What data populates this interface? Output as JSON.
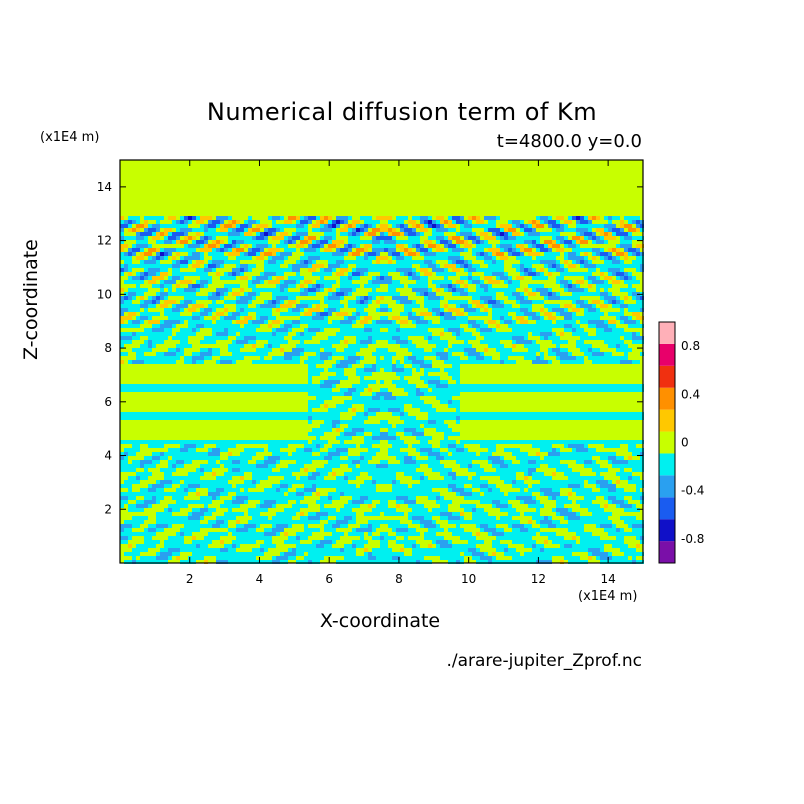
{
  "chart_data": {
    "type": "heatmap",
    "title": "Numerical diffusion term of Km",
    "subtitle": "t=4800.0 y=0.0",
    "xlabel": "X-coordinate",
    "ylabel": "Z-coordinate",
    "x_scale_note": "(x1E4 m)",
    "y_scale_note": "(x1E4 m)",
    "footnote": "./arare-jupiter_Zprof.nc",
    "xlim": [
      0,
      15
    ],
    "ylim": [
      0,
      15
    ],
    "xticks": [
      "2",
      "4",
      "6",
      "8",
      "10",
      "12",
      "14"
    ],
    "yticks": [
      "2",
      "4",
      "6",
      "8",
      "10",
      "12",
      "14"
    ],
    "colorbar": {
      "levels": [
        -1.0,
        -0.8,
        -0.6,
        -0.4,
        -0.2,
        0.0,
        0.2,
        0.4,
        0.6,
        0.8,
        1.0
      ],
      "colors": [
        "#7a0fa8",
        "#1010c8",
        "#1a5cf0",
        "#2aa0f0",
        "#00f0f0",
        "#c8ff00",
        "#ffc800",
        "#ff9000",
        "#f03010",
        "#e8006a",
        "#ffb0b8"
      ],
      "tick_labels": [
        "0.8",
        "0.4",
        "0",
        "-0.4",
        "-0.8"
      ],
      "tick_values": [
        0.8,
        0.4,
        0,
        -0.4,
        -0.8
      ]
    },
    "grid": false
  }
}
